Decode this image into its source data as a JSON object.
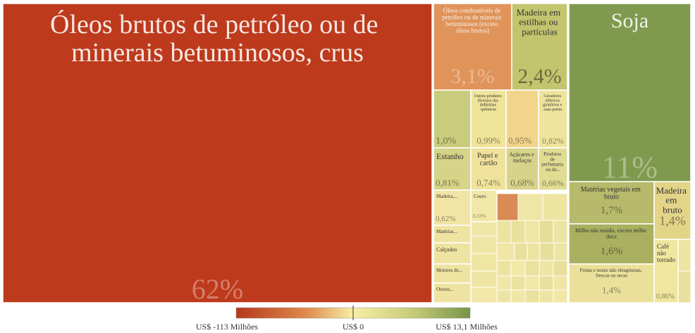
{
  "chart_data": {
    "type": "treemap",
    "categories": [
      "Óleos brutos de petróleo ou de minerais betuminosos, crus",
      "Óleos combustíveis de petróleo ou de minerais betuminosos (exceto óleos brutos)",
      "Madeira em estilhas ou partículas",
      "Soja",
      null,
      "Outros produtos diversos das indústrias químicas",
      null,
      "Geradores elétricos giratórios e suas partes",
      "Estanho",
      "Papel e cartão",
      "Açúcares e melaços",
      "Produtos de perfumaria ou de...",
      "Matérias vegetais em bruto",
      "Madeira em bruto",
      "Milho não moído, exceto milho doce",
      "Café não torrado",
      "Frutas e nozes não oleaginosas, frescas ou secas",
      "Madeira,...",
      "Couro",
      "Matérias...",
      "Calçados",
      "Motores de...",
      "Outros..."
    ],
    "values": [
      62,
      3.1,
      2.4,
      11,
      1.0,
      0.99,
      0.95,
      0.82,
      0.81,
      0.74,
      0.68,
      0.66,
      1.7,
      1.4,
      1.6,
      0.86,
      1.4,
      0.62,
      0.33,
      0.5,
      0.45,
      0.4,
      0.4
    ],
    "value_labels": [
      "62%",
      "3,1%",
      "2,4%",
      "11%",
      "1,0%",
      "0,99%",
      "0,95%",
      "0,82%",
      "0,81%",
      "0,74%",
      "0,68%",
      "0,66%",
      "1,7%",
      "1,4%",
      "1,6%",
      "0,86%",
      "1,4%",
      "0,62%",
      "0,33%",
      null,
      null,
      null,
      null
    ],
    "colors": [
      "#bd3a1c",
      "#e0945a",
      "#c2c56e",
      "#7f9a4e",
      "#c9cc7c",
      "#f0e39a",
      "#f2d58a",
      "#efe49c",
      "#d5d488",
      "#f0e29a",
      "#d7d38a",
      "#e0dc92",
      "#b6ba6a",
      "#e3d488",
      "#a9b060",
      "#f0e69e",
      "#ebe09a",
      "#f2e4a4",
      "#f1e7a6",
      "#efe3a2",
      "#efe3a2",
      "#efe3a2",
      "#efe3a2"
    ],
    "legend": {
      "labels": [
        "US$ -113 Milhões",
        "US$ 0",
        "US$ 13,1 Milhões"
      ]
    }
  }
}
